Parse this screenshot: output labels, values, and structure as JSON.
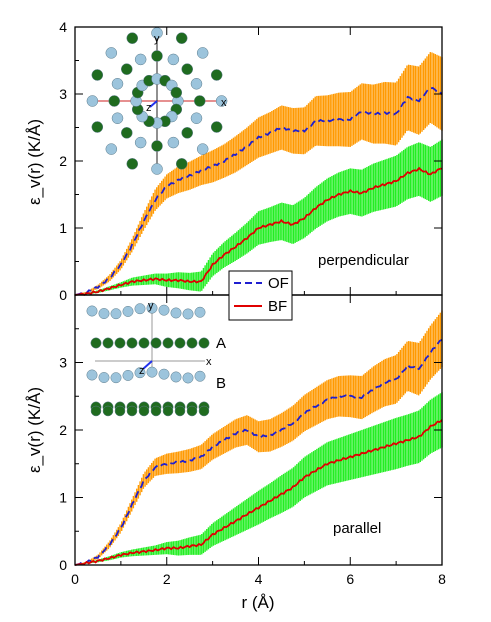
{
  "chart_data": [
    {
      "type": "line",
      "panel": "top",
      "annotation": "perpendicular",
      "ylabel": "ε_v(r)  (K/Å)",
      "xlim": [
        0,
        8
      ],
      "ylim": [
        0,
        4
      ],
      "xticks": [
        "0",
        "2",
        "4",
        "6",
        "8"
      ],
      "yticks": [
        "0",
        "1",
        "2",
        "3",
        "4"
      ],
      "grid": false,
      "legend": {
        "placement": "bottom-center",
        "entries": [
          "OF",
          "BF"
        ]
      },
      "inset_labels": {
        "x": "x",
        "y": "y",
        "z": "z"
      },
      "series": [
        {
          "name": "OF",
          "color": "#1f1fd0",
          "band_color": "#ff9900",
          "x": [
            0,
            0.25,
            0.5,
            0.75,
            1.0,
            1.25,
            1.5,
            1.75,
            2.0,
            2.25,
            2.5,
            2.75,
            3.0,
            3.25,
            3.5,
            3.75,
            4.0,
            4.25,
            4.5,
            4.75,
            5.0,
            5.25,
            5.5,
            5.75,
            6.0,
            6.25,
            6.5,
            6.75,
            7.0,
            7.25,
            7.5,
            7.75,
            8.0
          ],
          "y": [
            0,
            0.04,
            0.12,
            0.25,
            0.45,
            0.75,
            1.1,
            1.42,
            1.62,
            1.72,
            1.78,
            1.86,
            1.92,
            2.0,
            2.1,
            2.22,
            2.35,
            2.42,
            2.5,
            2.45,
            2.45,
            2.6,
            2.6,
            2.62,
            2.62,
            2.74,
            2.7,
            2.72,
            2.7,
            2.95,
            2.9,
            3.1,
            3.0
          ],
          "err": [
            0,
            0.01,
            0.03,
            0.05,
            0.07,
            0.1,
            0.13,
            0.16,
            0.18,
            0.2,
            0.21,
            0.22,
            0.24,
            0.25,
            0.27,
            0.28,
            0.3,
            0.31,
            0.33,
            0.34,
            0.35,
            0.37,
            0.38,
            0.4,
            0.41,
            0.42,
            0.44,
            0.46,
            0.47,
            0.49,
            0.51,
            0.53,
            0.55
          ]
        },
        {
          "name": "BF",
          "color": "#e00000",
          "band_color": "#22ee22",
          "x": [
            0,
            0.25,
            0.5,
            0.75,
            1.0,
            1.25,
            1.5,
            1.75,
            2.0,
            2.25,
            2.5,
            2.75,
            3.0,
            3.25,
            3.5,
            3.75,
            4.0,
            4.25,
            4.5,
            4.75,
            5.0,
            5.25,
            5.5,
            5.75,
            6.0,
            6.25,
            6.5,
            6.75,
            7.0,
            7.25,
            7.5,
            7.75,
            8.0
          ],
          "y": [
            0,
            0.02,
            0.05,
            0.1,
            0.15,
            0.2,
            0.22,
            0.24,
            0.22,
            0.22,
            0.2,
            0.2,
            0.45,
            0.6,
            0.72,
            0.85,
            1.0,
            1.05,
            1.1,
            1.05,
            1.15,
            1.3,
            1.42,
            1.5,
            1.55,
            1.52,
            1.6,
            1.65,
            1.7,
            1.82,
            1.88,
            1.8,
            1.9
          ],
          "err": [
            0,
            0.01,
            0.02,
            0.03,
            0.04,
            0.06,
            0.07,
            0.08,
            0.1,
            0.12,
            0.13,
            0.15,
            0.17,
            0.19,
            0.21,
            0.23,
            0.25,
            0.26,
            0.28,
            0.29,
            0.3,
            0.31,
            0.32,
            0.33,
            0.34,
            0.35,
            0.36,
            0.37,
            0.38,
            0.39,
            0.4,
            0.41,
            0.42
          ]
        }
      ]
    },
    {
      "type": "line",
      "panel": "bottom",
      "annotation": "parallel",
      "xlabel": "r  (Å)",
      "ylabel": "ε_v(r)  (K/Å)",
      "xlim": [
        0,
        8
      ],
      "ylim": [
        0,
        4
      ],
      "xticks": [
        "0",
        "2",
        "4",
        "6",
        "8"
      ],
      "yticks": [
        "0",
        "1",
        "2",
        "3"
      ],
      "grid": false,
      "inset_labels": {
        "x": "x",
        "y": "y",
        "z": "z",
        "A": "A",
        "B": "B"
      },
      "series": [
        {
          "name": "OF",
          "color": "#1f1fd0",
          "band_color": "#ff9900",
          "x": [
            0,
            0.25,
            0.5,
            0.75,
            1.0,
            1.25,
            1.5,
            1.75,
            2.0,
            2.25,
            2.5,
            2.75,
            3.0,
            3.25,
            3.5,
            3.75,
            4.0,
            4.25,
            4.5,
            4.75,
            5.0,
            5.25,
            5.5,
            5.75,
            6.0,
            6.25,
            6.5,
            6.75,
            7.0,
            7.25,
            7.5,
            7.75,
            8.0
          ],
          "y": [
            0,
            0.04,
            0.12,
            0.3,
            0.55,
            0.9,
            1.25,
            1.45,
            1.5,
            1.52,
            1.55,
            1.6,
            1.75,
            1.85,
            1.95,
            2.0,
            1.9,
            1.92,
            2.0,
            2.1,
            2.25,
            2.35,
            2.45,
            2.5,
            2.5,
            2.48,
            2.6,
            2.7,
            2.75,
            2.95,
            2.9,
            3.15,
            3.35
          ],
          "err": [
            0,
            0.01,
            0.03,
            0.05,
            0.07,
            0.09,
            0.11,
            0.13,
            0.15,
            0.16,
            0.17,
            0.18,
            0.19,
            0.2,
            0.21,
            0.22,
            0.23,
            0.24,
            0.25,
            0.26,
            0.27,
            0.28,
            0.29,
            0.3,
            0.31,
            0.32,
            0.34,
            0.35,
            0.36,
            0.37,
            0.39,
            0.4,
            0.42
          ]
        },
        {
          "name": "BF",
          "color": "#e00000",
          "band_color": "#22ee22",
          "x": [
            0,
            0.25,
            0.5,
            0.75,
            1.0,
            1.25,
            1.5,
            1.75,
            2.0,
            2.25,
            2.5,
            2.75,
            3.0,
            3.25,
            3.5,
            3.75,
            4.0,
            4.25,
            4.5,
            4.75,
            5.0,
            5.25,
            5.5,
            5.75,
            6.0,
            6.25,
            6.5,
            6.75,
            7.0,
            7.25,
            7.5,
            7.75,
            8.0
          ],
          "y": [
            0,
            0.03,
            0.06,
            0.1,
            0.15,
            0.18,
            0.2,
            0.22,
            0.25,
            0.25,
            0.28,
            0.3,
            0.45,
            0.55,
            0.65,
            0.75,
            0.85,
            0.95,
            1.05,
            1.15,
            1.3,
            1.4,
            1.5,
            1.55,
            1.6,
            1.65,
            1.7,
            1.75,
            1.8,
            1.85,
            1.9,
            2.05,
            2.15
          ],
          "err": [
            0,
            0.01,
            0.02,
            0.03,
            0.04,
            0.05,
            0.06,
            0.07,
            0.09,
            0.11,
            0.13,
            0.15,
            0.17,
            0.19,
            0.21,
            0.23,
            0.25,
            0.26,
            0.28,
            0.29,
            0.3,
            0.31,
            0.32,
            0.33,
            0.34,
            0.35,
            0.36,
            0.37,
            0.38,
            0.38,
            0.39,
            0.4,
            0.41
          ]
        }
      ]
    }
  ]
}
